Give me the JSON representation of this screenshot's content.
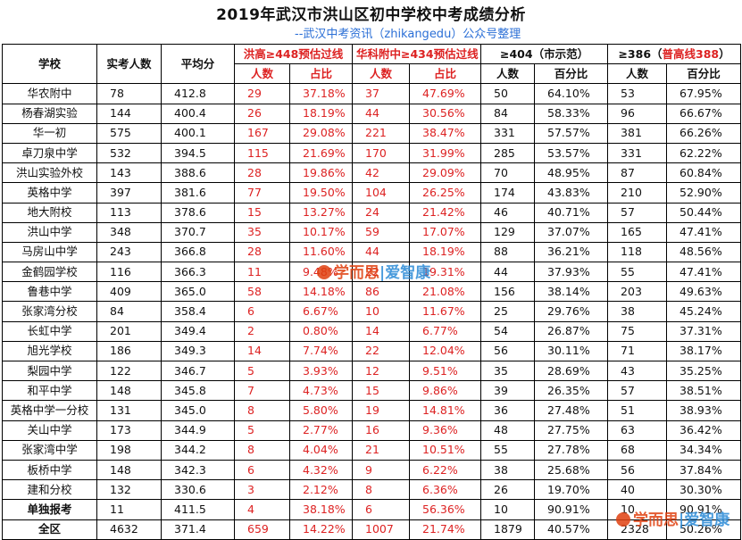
{
  "title": "2019年武汉市洪山区初中学校中考成绩分析",
  "subtitle": "--武汉中考资讯（zhikangedu）公众号整理",
  "headers": {
    "school": "学校",
    "examinees": "实考人数",
    "avg": "平均分",
    "g1": "洪高≥448预估过线",
    "g2": "华科附中≥434预估过线",
    "g3": "≥404（市示范）",
    "g4_prefix": "≥386（",
    "g4_red": "普高线388",
    "g4_suffix": "）",
    "count": "人数",
    "ratio": "占比",
    "pct": "百分比"
  },
  "rows": [
    {
      "school": "华农附中",
      "n": "78",
      "avg": "412.8",
      "a1": "29",
      "p1": "37.18%",
      "a2": "37",
      "p2": "47.69%",
      "a3": "50",
      "p3": "64.10%",
      "a4": "53",
      "p4": "67.95%"
    },
    {
      "school": "杨春湖实验",
      "n": "144",
      "avg": "400.4",
      "a1": "26",
      "p1": "18.19%",
      "a2": "44",
      "p2": "30.56%",
      "a3": "84",
      "p3": "58.33%",
      "a4": "96",
      "p4": "66.67%"
    },
    {
      "school": "华一初",
      "n": "575",
      "avg": "400.1",
      "a1": "167",
      "p1": "29.08%",
      "a2": "221",
      "p2": "38.47%",
      "a3": "331",
      "p3": "57.57%",
      "a4": "381",
      "p4": "66.26%"
    },
    {
      "school": "卓刀泉中学",
      "n": "532",
      "avg": "394.5",
      "a1": "115",
      "p1": "21.69%",
      "a2": "170",
      "p2": "31.99%",
      "a3": "285",
      "p3": "53.57%",
      "a4": "331",
      "p4": "62.22%"
    },
    {
      "school": "洪山实验外校",
      "n": "143",
      "avg": "388.6",
      "a1": "28",
      "p1": "19.86%",
      "a2": "42",
      "p2": "29.09%",
      "a3": "70",
      "p3": "48.95%",
      "a4": "87",
      "p4": "60.84%"
    },
    {
      "school": "英格中学",
      "n": "397",
      "avg": "381.6",
      "a1": "77",
      "p1": "19.50%",
      "a2": "104",
      "p2": "26.25%",
      "a3": "174",
      "p3": "43.83%",
      "a4": "210",
      "p4": "52.90%"
    },
    {
      "school": "地大附校",
      "n": "113",
      "avg": "378.6",
      "a1": "15",
      "p1": "13.27%",
      "a2": "24",
      "p2": "21.42%",
      "a3": "46",
      "p3": "40.71%",
      "a4": "57",
      "p4": "50.44%"
    },
    {
      "school": "洪山中学",
      "n": "348",
      "avg": "370.7",
      "a1": "35",
      "p1": "10.17%",
      "a2": "59",
      "p2": "17.07%",
      "a3": "129",
      "p3": "37.07%",
      "a4": "165",
      "p4": "47.41%"
    },
    {
      "school": "马房山中学",
      "n": "243",
      "avg": "366.8",
      "a1": "28",
      "p1": "11.60%",
      "a2": "44",
      "p2": "18.19%",
      "a3": "88",
      "p3": "36.21%",
      "a4": "118",
      "p4": "48.56%"
    },
    {
      "school": "金鹤园学校",
      "n": "116",
      "avg": "366.3",
      "a1": "11",
      "p1": "9.48%",
      "a2": "22",
      "p2": "19.31%",
      "a3": "44",
      "p3": "37.93%",
      "a4": "55",
      "p4": "47.41%"
    },
    {
      "school": "鲁巷中学",
      "n": "409",
      "avg": "365.0",
      "a1": "58",
      "p1": "14.18%",
      "a2": "86",
      "p2": "21.08%",
      "a3": "156",
      "p3": "38.14%",
      "a4": "203",
      "p4": "49.63%"
    },
    {
      "school": "张家湾分校",
      "n": "84",
      "avg": "358.4",
      "a1": "6",
      "p1": "6.67%",
      "a2": "10",
      "p2": "11.67%",
      "a3": "25",
      "p3": "29.76%",
      "a4": "38",
      "p4": "45.24%"
    },
    {
      "school": "长虹中学",
      "n": "201",
      "avg": "349.4",
      "a1": "2",
      "p1": "0.80%",
      "a2": "14",
      "p2": "6.77%",
      "a3": "54",
      "p3": "26.87%",
      "a4": "75",
      "p4": "37.31%"
    },
    {
      "school": "旭光学校",
      "n": "186",
      "avg": "349.3",
      "a1": "14",
      "p1": "7.74%",
      "a2": "22",
      "p2": "12.04%",
      "a3": "56",
      "p3": "30.11%",
      "a4": "71",
      "p4": "38.17%"
    },
    {
      "school": "梨园中学",
      "n": "122",
      "avg": "346.7",
      "a1": "5",
      "p1": "3.93%",
      "a2": "12",
      "p2": "9.51%",
      "a3": "35",
      "p3": "28.69%",
      "a4": "43",
      "p4": "35.25%"
    },
    {
      "school": "和平中学",
      "n": "148",
      "avg": "345.8",
      "a1": "7",
      "p1": "4.73%",
      "a2": "15",
      "p2": "9.86%",
      "a3": "39",
      "p3": "26.35%",
      "a4": "57",
      "p4": "38.51%"
    },
    {
      "school": "英格中学一分校",
      "n": "131",
      "avg": "345.0",
      "a1": "8",
      "p1": "5.80%",
      "a2": "19",
      "p2": "14.81%",
      "a3": "36",
      "p3": "27.48%",
      "a4": "51",
      "p4": "38.93%"
    },
    {
      "school": "关山中学",
      "n": "173",
      "avg": "344.9",
      "a1": "5",
      "p1": "2.77%",
      "a2": "16",
      "p2": "9.36%",
      "a3": "48",
      "p3": "27.75%",
      "a4": "63",
      "p4": "36.42%"
    },
    {
      "school": "张家湾中学",
      "n": "198",
      "avg": "344.2",
      "a1": "8",
      "p1": "4.04%",
      "a2": "21",
      "p2": "10.51%",
      "a3": "55",
      "p3": "27.78%",
      "a4": "68",
      "p4": "34.34%"
    },
    {
      "school": "板桥中学",
      "n": "148",
      "avg": "342.3",
      "a1": "6",
      "p1": "4.32%",
      "a2": "9",
      "p2": "6.22%",
      "a3": "38",
      "p3": "25.68%",
      "a4": "56",
      "p4": "37.84%"
    },
    {
      "school": "建和分校",
      "n": "132",
      "avg": "330.6",
      "a1": "3",
      "p1": "2.12%",
      "a2": "8",
      "p2": "6.36%",
      "a3": "26",
      "p3": "19.70%",
      "a4": "40",
      "p4": "30.30%"
    },
    {
      "school": "单独报考",
      "n": "11",
      "avg": "411.5",
      "a1": "4",
      "p1": "38.18%",
      "a2": "6",
      "p2": "56.36%",
      "a3": "10",
      "p3": "90.91%",
      "a4": "10",
      "p4": "90.91%",
      "bold": true
    },
    {
      "school": "全区",
      "n": "4632",
      "avg": "371.4",
      "a1": "659",
      "p1": "14.22%",
      "a2": "1007",
      "p2": "21.74%",
      "a3": "1879",
      "p3": "40.57%",
      "a4": "2328",
      "p4": "50.26%",
      "bold": true
    }
  ],
  "watermark": {
    "text_a": "学而思",
    "text_b": "爱智康"
  }
}
